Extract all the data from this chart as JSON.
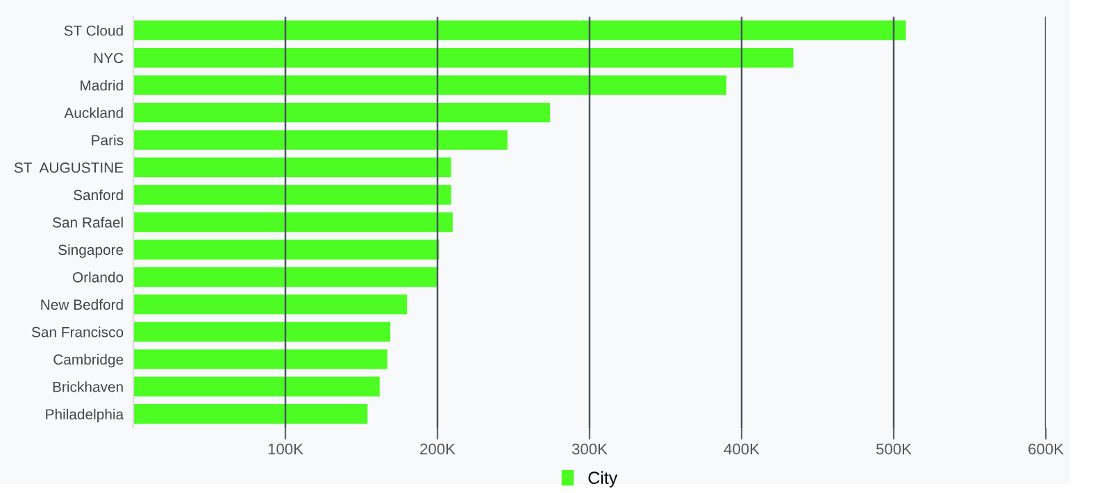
{
  "chart_data": {
    "type": "bar",
    "orientation": "horizontal",
    "categories": [
      "ST Cloud",
      "NYC",
      "Madrid",
      "Auckland",
      "Paris",
      "ST  AUGUSTINE",
      "Sanford",
      "San Rafael",
      "Singapore",
      "Orlando",
      "New Bedford",
      "San Francisco",
      "Cambridge",
      "Brickhaven",
      "Philadelphia"
    ],
    "series": [
      {
        "name": "City",
        "color": "#4cfc23",
        "values": [
          508000,
          434000,
          390000,
          274000,
          246000,
          209000,
          209000,
          210000,
          201000,
          200000,
          180000,
          169000,
          167000,
          162000,
          154000
        ]
      }
    ],
    "xlim": [
      0,
      600000
    ],
    "xticks": [
      {
        "value": 100000,
        "label": "100K"
      },
      {
        "value": 200000,
        "label": "200K"
      },
      {
        "value": 300000,
        "label": "300K"
      },
      {
        "value": 400000,
        "label": "400K"
      },
      {
        "value": 500000,
        "label": "500K"
      },
      {
        "value": 600000,
        "label": "600K"
      }
    ],
    "grid": "x",
    "legend": "bottom"
  }
}
